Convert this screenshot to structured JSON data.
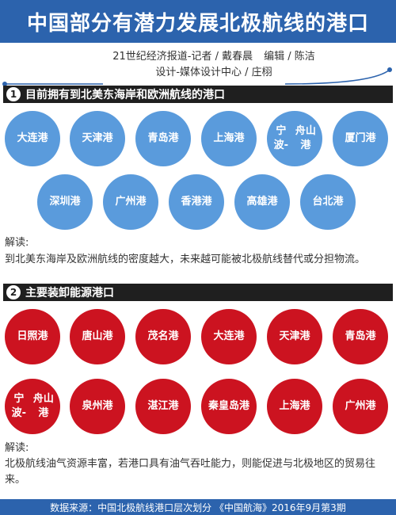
{
  "header": {
    "title": "中国部分有潜力发展北极航线的港口"
  },
  "credits": {
    "line1_a": "21世纪经济报道-记者 / 戴春晨",
    "line1_b": "编辑 / 陈洁",
    "line2": "设计-媒体设计中心 / 庄栩"
  },
  "section1": {
    "number": "1",
    "title": "目前拥有到北美东海岸和欧洲航线的港口",
    "ports": [
      "大连港",
      "天津港",
      "青岛港",
      "上海港",
      "宁波-舟山港",
      "厦门港",
      "深圳港",
      "广州港",
      "香港港",
      "高雄港",
      "台北港"
    ],
    "note_label": "解读:",
    "note_text": "到北美东海岸及欧洲航线的密度越大，未来越可能被北极航线替代或分担物流。"
  },
  "section2": {
    "number": "2",
    "title": "主要装卸能源港口",
    "ports": [
      "日照港",
      "唐山港",
      "茂名港",
      "大连港",
      "天津港",
      "青岛港",
      "宁波-舟山港",
      "泉州港",
      "湛江港",
      "秦皇岛港",
      "上海港",
      "广州港"
    ],
    "note_label": "解读:",
    "note_text": "北极航线油气资源丰富，若港口具有油气吞吐能力，则能促进与北极地区的贸易往来。"
  },
  "footer": {
    "source": "数据来源：中国北极航线港口层次划分 《中国航海》2016年9月第3期"
  },
  "colors": {
    "header": "#2c63ad",
    "blue_circle": "#5a9bdc",
    "red_circle": "#cc1320",
    "section_bar": "#1f1f1f"
  }
}
